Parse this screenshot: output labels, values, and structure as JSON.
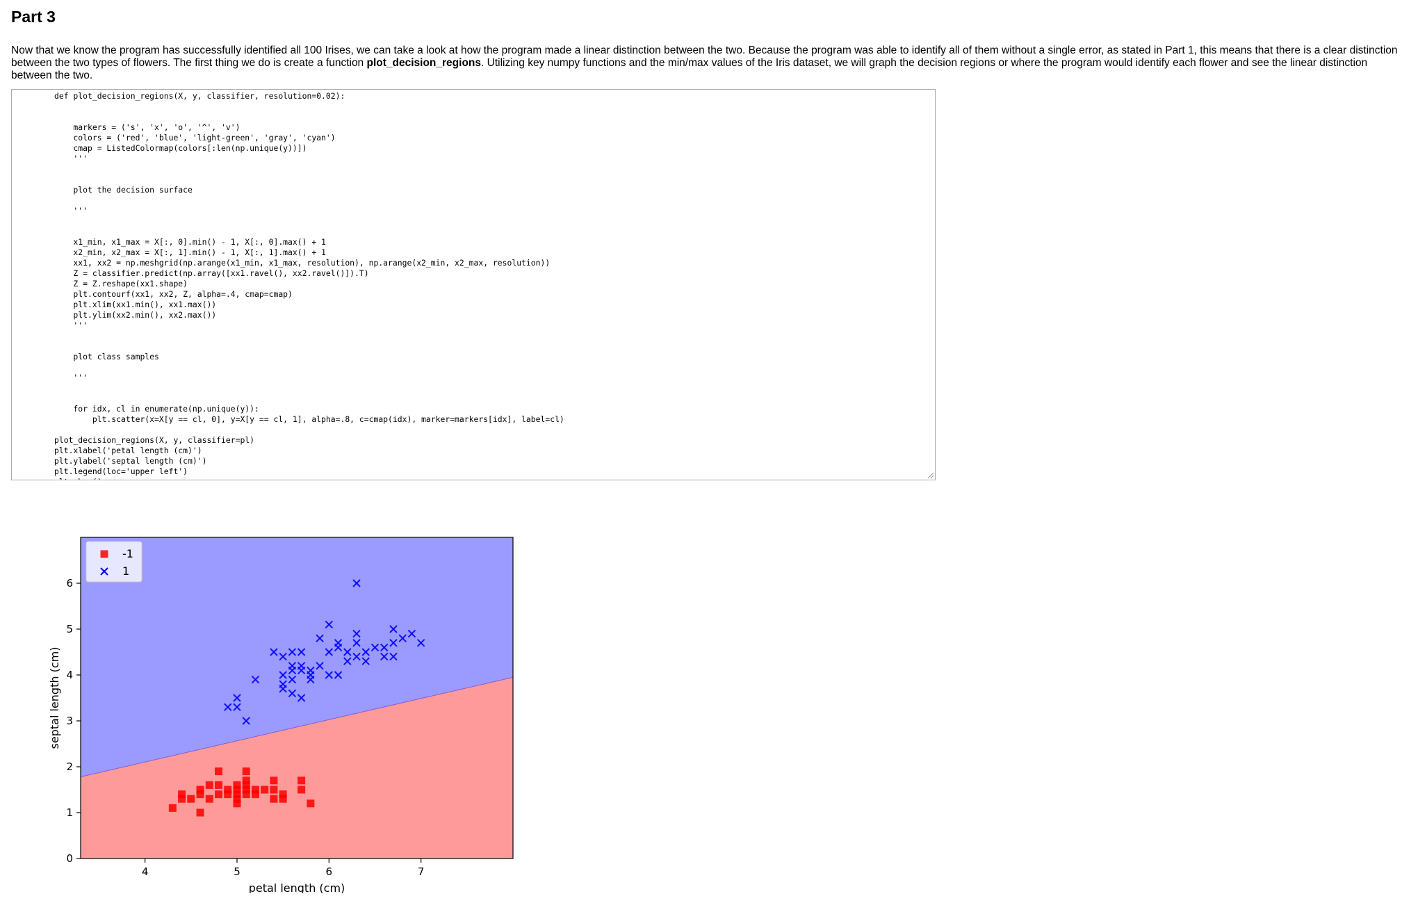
{
  "section": {
    "title": "Part 3"
  },
  "intro": {
    "text_1": "Now that we know the program has successfully identified all 100 Irises, we can take a look at how the program made a linear distinction between the two. Because the program was able to identify all of them without a single error, as stated in Part 1, this means that there is a clear distinction between the two types of flowers. The first thing we do is create a function ",
    "function_name": "plot_decision_regions",
    "text_2": ". Utilizing key numpy functions and the min/max values of the Iris dataset, we will graph the decision regions or where the program would identify each flower and see the linear distinction between the two."
  },
  "code": {
    "text": "def plot_decision_regions(X, y, classifier, resolution=0.02):\n\n\n    markers = ('s', 'x', 'o', '^', 'v')\n    colors = ('red', 'blue', 'light-green', 'gray', 'cyan')\n    cmap = ListedColormap(colors[:len(np.unique(y))])\n    '''\n\n\n    plot the decision surface\n\n    '''\n\n\n    x1_min, x1_max = X[:, 0].min() - 1, X[:, 0].max() + 1\n    x2_min, x2_max = X[:, 1].min() - 1, X[:, 1].max() + 1\n    xx1, xx2 = np.meshgrid(np.arange(x1_min, x1_max, resolution), np.arange(x2_min, x2_max, resolution))\n    Z = classifier.predict(np.array([xx1.ravel(), xx2.ravel()]).T)\n    Z = Z.reshape(xx1.shape)\n    plt.contourf(xx1, xx2, Z, alpha=.4, cmap=cmap)\n    plt.xlim(xx1.min(), xx1.max())\n    plt.ylim(xx2.min(), xx2.max())\n    '''\n\n\n    plot class samples\n\n    '''\n\n\n    for idx, cl in enumerate(np.unique(y)):\n        plt.scatter(x=X[y == cl, 0], y=X[y == cl, 1], alpha=.8, c=cmap(idx), marker=markers[idx], label=cl)\n\nplot_decision_regions(X, y, classifier=pl)\nplt.xlabel('petal length (cm)')\nplt.ylabel('septal length (cm)')\nplt.legend(loc='upper left')\nplt.show()"
  },
  "chart_data": {
    "type": "scatter",
    "title": "",
    "xlabel": "petal length (cm)",
    "ylabel": "septal length (cm)",
    "xlim": [
      3.3,
      8.0
    ],
    "ylim": [
      0,
      7.0
    ],
    "x_ticks": [
      4,
      5,
      6,
      7
    ],
    "y_ticks": [
      0,
      1,
      2,
      3,
      4,
      5,
      6
    ],
    "legend_position": "upper-left",
    "grid": false,
    "region_colors": {
      "-1": "#ff9a9a",
      "1": "#9a9aff"
    },
    "decision_boundary": {
      "x": [
        3.3,
        8.0
      ],
      "y": [
        1.78,
        3.95
      ]
    },
    "series": [
      {
        "name": "-1",
        "marker": "square",
        "color": "#ff0000",
        "points": [
          [
            4.3,
            1.1
          ],
          [
            4.4,
            1.4
          ],
          [
            4.4,
            1.3
          ],
          [
            4.5,
            1.3
          ],
          [
            4.6,
            1.4
          ],
          [
            4.6,
            1.5
          ],
          [
            4.6,
            1.0
          ],
          [
            4.7,
            1.3
          ],
          [
            4.7,
            1.6
          ],
          [
            4.8,
            1.4
          ],
          [
            4.8,
            1.6
          ],
          [
            4.8,
            1.9
          ],
          [
            4.9,
            1.4
          ],
          [
            4.9,
            1.5
          ],
          [
            5.0,
            1.6
          ],
          [
            5.0,
            1.4
          ],
          [
            5.0,
            1.5
          ],
          [
            5.0,
            1.2
          ],
          [
            5.0,
            1.3
          ],
          [
            5.1,
            1.5
          ],
          [
            5.1,
            1.4
          ],
          [
            5.1,
            1.7
          ],
          [
            5.1,
            1.9
          ],
          [
            5.1,
            1.6
          ],
          [
            5.2,
            1.5
          ],
          [
            5.2,
            1.4
          ],
          [
            5.3,
            1.5
          ],
          [
            5.4,
            1.7
          ],
          [
            5.4,
            1.5
          ],
          [
            5.4,
            1.3
          ],
          [
            5.5,
            1.4
          ],
          [
            5.5,
            1.3
          ],
          [
            5.7,
            1.7
          ],
          [
            5.7,
            1.5
          ],
          [
            5.8,
            1.2
          ]
        ]
      },
      {
        "name": "1",
        "marker": "x",
        "color": "#0000ff",
        "points": [
          [
            4.9,
            3.3
          ],
          [
            5.0,
            3.3
          ],
          [
            5.0,
            3.5
          ],
          [
            5.1,
            3.0
          ],
          [
            5.2,
            3.9
          ],
          [
            5.4,
            4.5
          ],
          [
            5.5,
            4.4
          ],
          [
            5.5,
            4.0
          ],
          [
            5.5,
            3.8
          ],
          [
            5.5,
            3.7
          ],
          [
            5.6,
            4.5
          ],
          [
            5.6,
            4.2
          ],
          [
            5.6,
            4.1
          ],
          [
            5.6,
            3.9
          ],
          [
            5.6,
            3.6
          ],
          [
            5.7,
            4.5
          ],
          [
            5.7,
            4.2
          ],
          [
            5.7,
            4.1
          ],
          [
            5.7,
            3.5
          ],
          [
            5.8,
            4.1
          ],
          [
            5.8,
            4.0
          ],
          [
            5.8,
            3.9
          ],
          [
            5.9,
            4.8
          ],
          [
            5.9,
            4.2
          ],
          [
            6.0,
            5.1
          ],
          [
            6.0,
            4.5
          ],
          [
            6.0,
            4.0
          ],
          [
            6.1,
            4.7
          ],
          [
            6.1,
            4.6
          ],
          [
            6.1,
            4.0
          ],
          [
            6.2,
            4.5
          ],
          [
            6.2,
            4.3
          ],
          [
            6.3,
            4.9
          ],
          [
            6.3,
            4.7
          ],
          [
            6.3,
            4.4
          ],
          [
            6.3,
            6.0
          ],
          [
            6.4,
            4.5
          ],
          [
            6.4,
            4.3
          ],
          [
            6.5,
            4.6
          ],
          [
            6.6,
            4.6
          ],
          [
            6.6,
            4.4
          ],
          [
            6.7,
            5.0
          ],
          [
            6.7,
            4.7
          ],
          [
            6.7,
            4.4
          ],
          [
            6.8,
            4.8
          ],
          [
            6.9,
            4.9
          ],
          [
            7.0,
            4.7
          ]
        ]
      }
    ]
  }
}
